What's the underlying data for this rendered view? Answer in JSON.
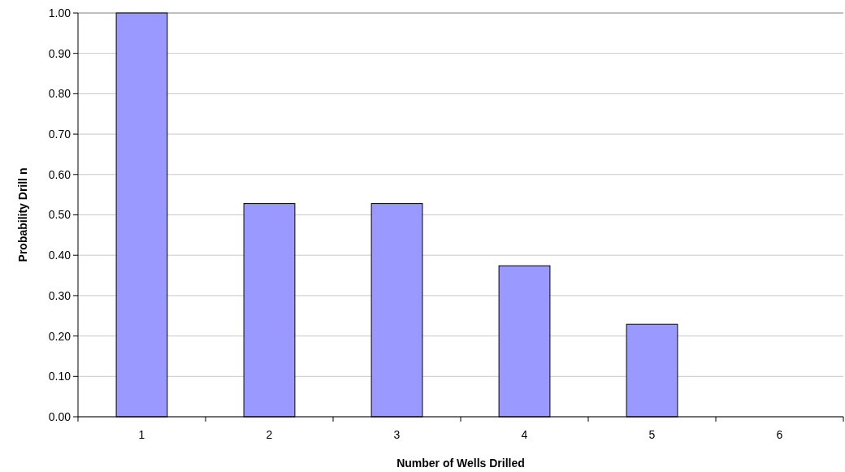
{
  "chart_data": {
    "type": "bar",
    "xlabel": "Number of Wells Drilled",
    "ylabel": "Probability Drill n",
    "categories": [
      "1",
      "2",
      "3",
      "4",
      "5",
      "6"
    ],
    "values": [
      1.0,
      0.528,
      0.528,
      0.374,
      0.229,
      0
    ],
    "color": "#9999ff",
    "ylim": [
      0,
      1
    ],
    "yticks": [
      {
        "value": 0,
        "label": "0.00"
      },
      {
        "value": 0.1,
        "label": "0.10"
      },
      {
        "value": 0.2,
        "label": "0.20"
      },
      {
        "value": 0.3,
        "label": "0.30"
      },
      {
        "value": 0.4,
        "label": "0.40"
      },
      {
        "value": 0.5,
        "label": "0.50"
      },
      {
        "value": 0.6,
        "label": "0.60"
      },
      {
        "value": 0.7,
        "label": "0.70"
      },
      {
        "value": 0.8,
        "label": "0.80"
      },
      {
        "value": 0.9,
        "label": "0.90"
      },
      {
        "value": 1,
        "label": "1.00"
      }
    ],
    "grid": "y"
  }
}
